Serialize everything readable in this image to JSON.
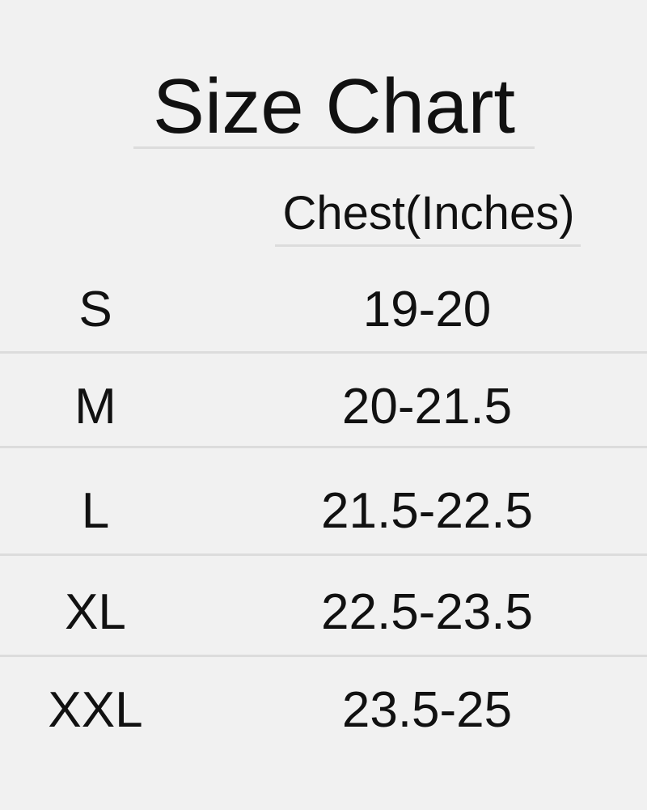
{
  "title": "Size Chart",
  "table": {
    "header": "Chest(Inches)",
    "rows": [
      [
        "S",
        "19-20"
      ],
      [
        "M",
        "20-21.5"
      ],
      [
        "L",
        "21.5-22.5"
      ],
      [
        "XL",
        "22.5-23.5"
      ],
      [
        "XXL",
        "23.5-25"
      ]
    ]
  }
}
